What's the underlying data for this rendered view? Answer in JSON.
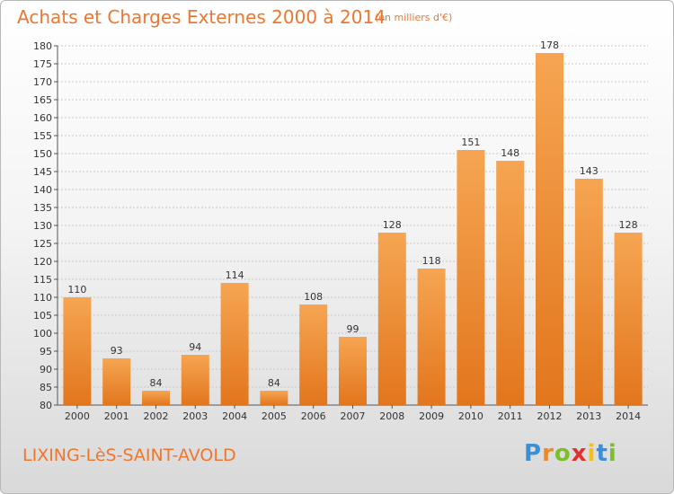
{
  "title": "Achats et Charges Externes 2000 à 2014",
  "subtitle": "(en milliers d'€)",
  "town": "LIXING-LèS-SAINT-AVOLD",
  "logo": {
    "letters": [
      "P",
      "r",
      "o",
      "x",
      "i",
      "t",
      "i"
    ],
    "colors": [
      "#3b8fd6",
      "#f08a1e",
      "#7cbf2a",
      "#e2312d",
      "#f2c21b",
      "#3b8fd6",
      "#7cbf2a"
    ]
  },
  "colors": {
    "bar_light": "#f6a552",
    "bar_dark": "#e2761d",
    "accent": "#ee7730",
    "grid": "#c8c8c8"
  },
  "chart_data": {
    "type": "bar",
    "title": "Achats et Charges Externes 2000 à 2014",
    "subtitle": "(en milliers d'€)",
    "categories": [
      "2000",
      "2001",
      "2002",
      "2003",
      "2004",
      "2005",
      "2006",
      "2007",
      "2008",
      "2009",
      "2010",
      "2011",
      "2012",
      "2013",
      "2014"
    ],
    "values": [
      110,
      93,
      84,
      94,
      114,
      84,
      108,
      99,
      128,
      118,
      151,
      148,
      178,
      143,
      128
    ],
    "ylim": [
      80,
      180
    ],
    "yticks": [
      80,
      85,
      90,
      95,
      100,
      105,
      110,
      115,
      120,
      125,
      130,
      135,
      140,
      145,
      150,
      155,
      160,
      165,
      170,
      175,
      180
    ],
    "grid": true,
    "xlabel": "",
    "ylabel": ""
  }
}
